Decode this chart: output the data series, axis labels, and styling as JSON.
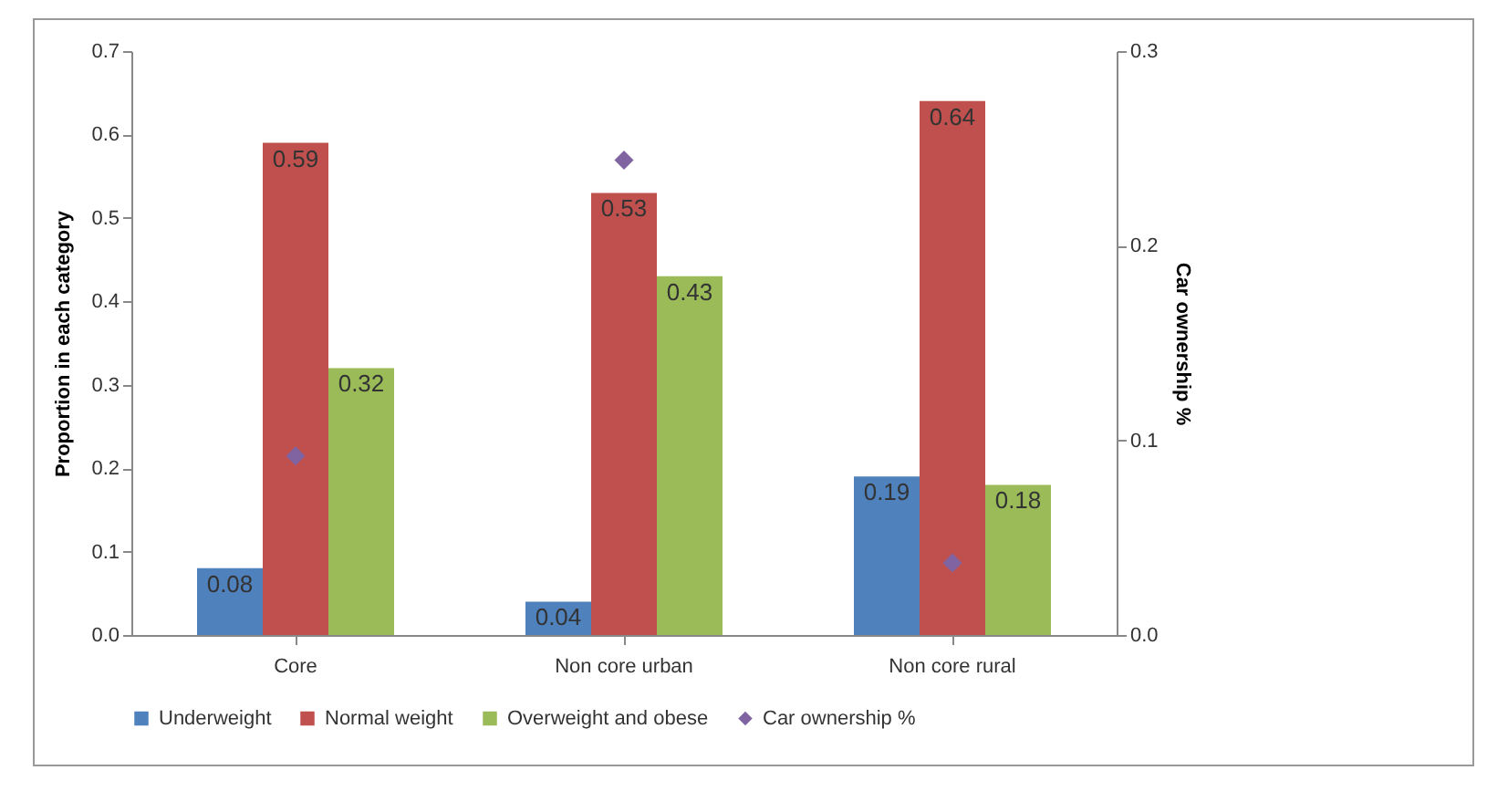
{
  "chart_data": {
    "type": "bar",
    "ylabel": "Proportion in each category",
    "y2label": "Car ownership %",
    "categories": [
      "Core",
      "Non core urban",
      "Non core rural"
    ],
    "series": [
      {
        "name": "Underweight",
        "color": "#4f81bd",
        "values": [
          0.08,
          0.04,
          0.19
        ],
        "value_labels": [
          "0.08",
          "0.04",
          "0.19"
        ]
      },
      {
        "name": "Normal weight",
        "color": "#c0504d",
        "values": [
          0.59,
          0.53,
          0.64
        ],
        "value_labels": [
          "0.59",
          "0.53",
          "0.64"
        ]
      },
      {
        "name": "Overweight and obese",
        "color": "#9bbb59",
        "values": [
          0.32,
          0.43,
          0.18
        ],
        "value_labels": [
          "0.32",
          "0.43",
          "0.18"
        ]
      },
      {
        "name": "Car ownership %",
        "type": "scatter",
        "axis": "y2",
        "color": "#8064a2",
        "marker": "diamond",
        "values": [
          0.092,
          0.244,
          0.037
        ]
      }
    ],
    "ylim": [
      0,
      0.7
    ],
    "yticks": [
      {
        "value": 0,
        "label": "0.0"
      },
      0.1,
      0.2,
      0.3,
      0.4,
      0.5,
      0.6,
      0.7
    ],
    "y2lim": [
      0,
      0.3
    ],
    "y2ticks": [
      {
        "value": 0,
        "label": "0.0"
      },
      0.1,
      0.2,
      0.3
    ],
    "grid": false,
    "legend": "bottom"
  }
}
